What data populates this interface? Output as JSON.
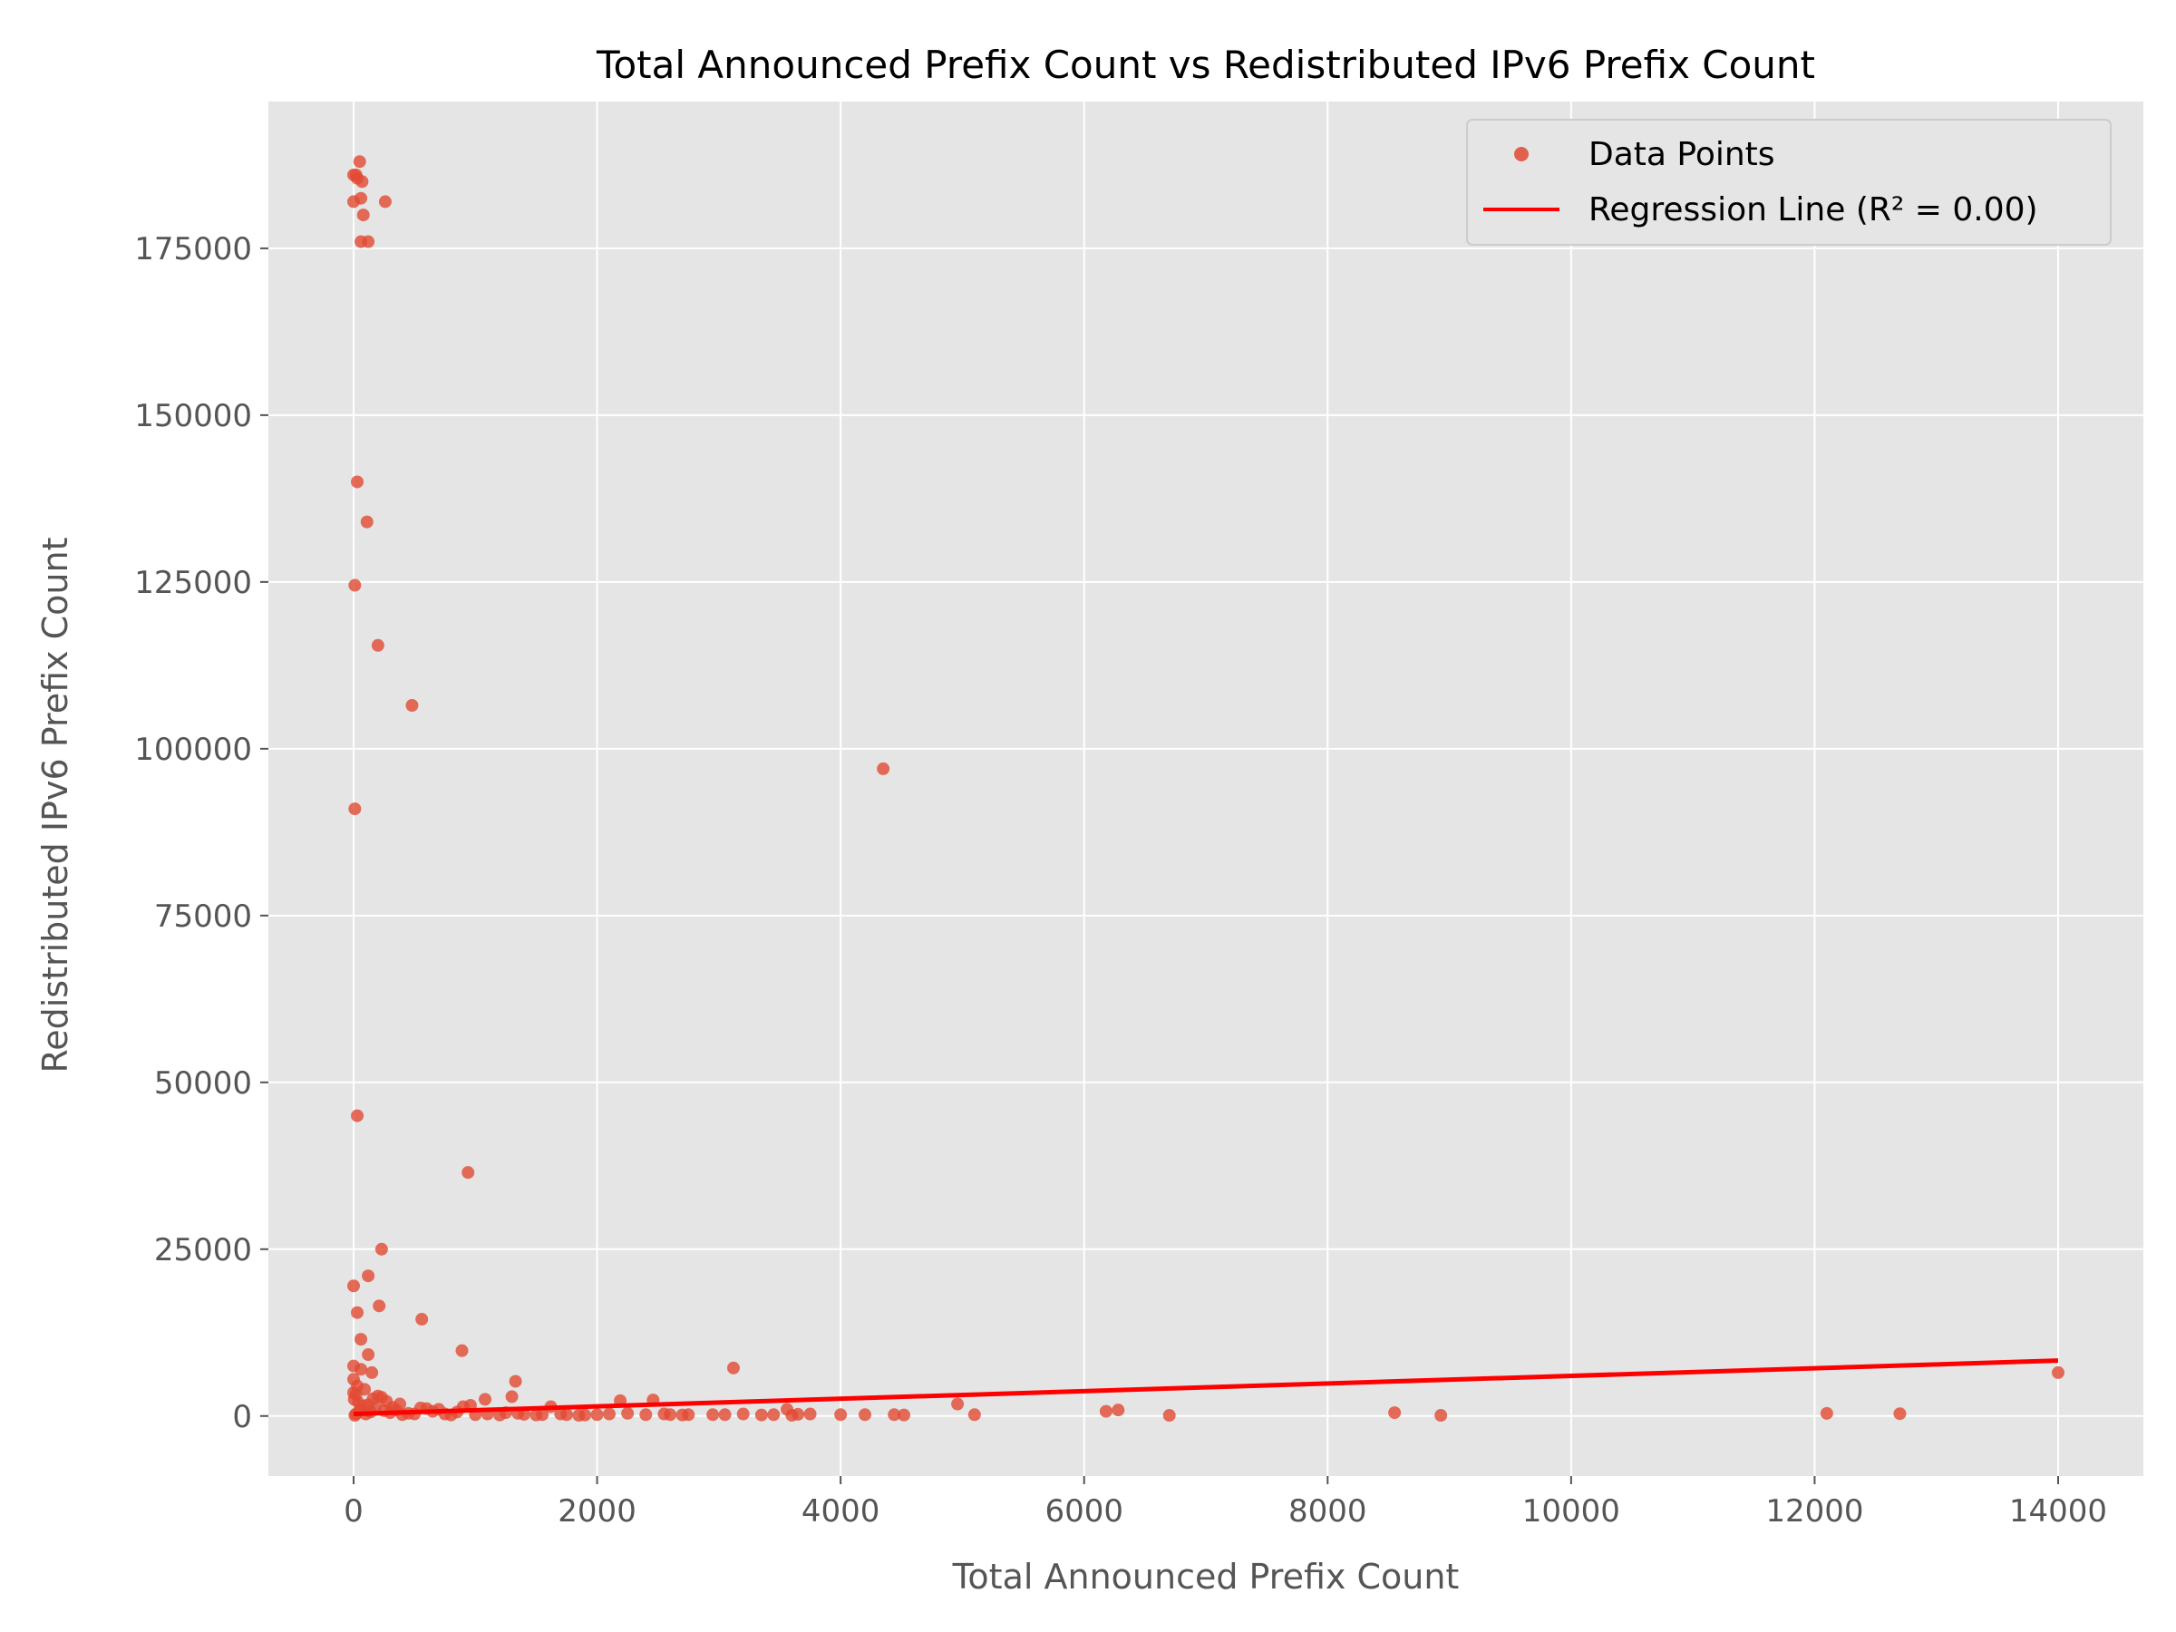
{
  "chart_data": {
    "type": "scatter",
    "title": "Total Announced Prefix Count vs Redistributed IPv6 Prefix Count",
    "xlabel": "Total Announced Prefix Count",
    "ylabel": "Redistributed IPv6 Prefix Count",
    "xlim": [
      -700,
      14700
    ],
    "ylim": [
      -9000,
      197000
    ],
    "x_ticks": [
      0,
      2000,
      4000,
      6000,
      8000,
      10000,
      12000,
      14000
    ],
    "y_ticks": [
      0,
      25000,
      50000,
      75000,
      100000,
      125000,
      150000,
      175000
    ],
    "grid": true,
    "legend_position": "top-right",
    "colors": {
      "points": "#E24A33",
      "regression": "#FF0000",
      "background": "#E5E5E5",
      "grid": "#FFFFFF"
    },
    "series": [
      {
        "name": "Data Points",
        "kind": "scatter",
        "points": [
          [
            0,
            186000
          ],
          [
            20,
            186000
          ],
          [
            30,
            185500
          ],
          [
            50,
            188000
          ],
          [
            70,
            185000
          ],
          [
            60,
            182500
          ],
          [
            0,
            182000
          ],
          [
            260,
            182000
          ],
          [
            80,
            180000
          ],
          [
            60,
            176000
          ],
          [
            120,
            176000
          ],
          [
            30,
            140000
          ],
          [
            110,
            134000
          ],
          [
            10,
            124500
          ],
          [
            200,
            115500
          ],
          [
            480,
            106500
          ],
          [
            4350,
            97000
          ],
          [
            10,
            91000
          ],
          [
            30,
            45000
          ],
          [
            940,
            36500
          ],
          [
            230,
            25000
          ],
          [
            120,
            21000
          ],
          [
            0,
            19500
          ],
          [
            210,
            16500
          ],
          [
            30,
            15500
          ],
          [
            560,
            14500
          ],
          [
            60,
            11500
          ],
          [
            890,
            9800
          ],
          [
            120,
            9200
          ],
          [
            3120,
            7200
          ],
          [
            0,
            7500
          ],
          [
            60,
            7000
          ],
          [
            150,
            6500
          ],
          [
            1330,
            5200
          ],
          [
            0,
            5500
          ],
          [
            30,
            4500
          ],
          [
            90,
            4000
          ],
          [
            0,
            3500
          ],
          [
            200,
            3000
          ],
          [
            20,
            3200
          ],
          [
            1300,
            2900
          ],
          [
            230,
            2800
          ],
          [
            1080,
            2500
          ],
          [
            2190,
            2300
          ],
          [
            2460,
            2400
          ],
          [
            40,
            2000
          ],
          [
            120,
            1700
          ],
          [
            960,
            1600
          ],
          [
            1620,
            1400
          ],
          [
            4960,
            1800
          ],
          [
            320,
            1300
          ],
          [
            600,
            1100
          ],
          [
            3560,
            1000
          ],
          [
            6280,
            900
          ],
          [
            6180,
            700
          ],
          [
            8550,
            500
          ],
          [
            12100,
            400
          ],
          [
            12700,
            350
          ],
          [
            14000,
            6500
          ],
          [
            5100,
            200
          ],
          [
            6700,
            100
          ],
          [
            8930,
            100
          ],
          [
            4000,
            200
          ],
          [
            4200,
            200
          ],
          [
            4440,
            200
          ],
          [
            4520,
            150
          ],
          [
            3200,
            300
          ],
          [
            3450,
            200
          ],
          [
            3650,
            250
          ],
          [
            3750,
            300
          ],
          [
            2950,
            200
          ],
          [
            3050,
            200
          ],
          [
            2600,
            200
          ],
          [
            2700,
            150
          ],
          [
            2000,
            200
          ],
          [
            1900,
            150
          ],
          [
            1750,
            200
          ],
          [
            1500,
            150
          ],
          [
            1400,
            250
          ],
          [
            1200,
            150
          ],
          [
            1000,
            200
          ],
          [
            800,
            150
          ],
          [
            700,
            1000
          ],
          [
            500,
            300
          ],
          [
            400,
            200
          ],
          [
            300,
            500
          ],
          [
            250,
            800
          ],
          [
            180,
            1200
          ],
          [
            140,
            600
          ],
          [
            100,
            300
          ],
          [
            80,
            1500
          ],
          [
            50,
            900
          ],
          [
            20,
            300
          ],
          [
            10,
            100
          ],
          [
            5,
            2500
          ],
          [
            350,
            900
          ],
          [
            450,
            400
          ],
          [
            650,
            700
          ],
          [
            750,
            300
          ],
          [
            850,
            600
          ],
          [
            1100,
            300
          ],
          [
            1250,
            500
          ],
          [
            1350,
            400
          ],
          [
            1550,
            200
          ],
          [
            1700,
            300
          ],
          [
            1850,
            100
          ],
          [
            2100,
            300
          ],
          [
            2250,
            400
          ],
          [
            2400,
            200
          ],
          [
            2550,
            300
          ],
          [
            2750,
            200
          ],
          [
            3350,
            150
          ],
          [
            3600,
            100
          ],
          [
            900,
            1400
          ],
          [
            550,
            1200
          ],
          [
            380,
            1800
          ],
          [
            270,
            2200
          ],
          [
            160,
            2600
          ]
        ]
      },
      {
        "name": "Regression Line (R² = 0.00)",
        "kind": "line",
        "points": [
          [
            0,
            300
          ],
          [
            14000,
            8300
          ]
        ]
      }
    ]
  }
}
